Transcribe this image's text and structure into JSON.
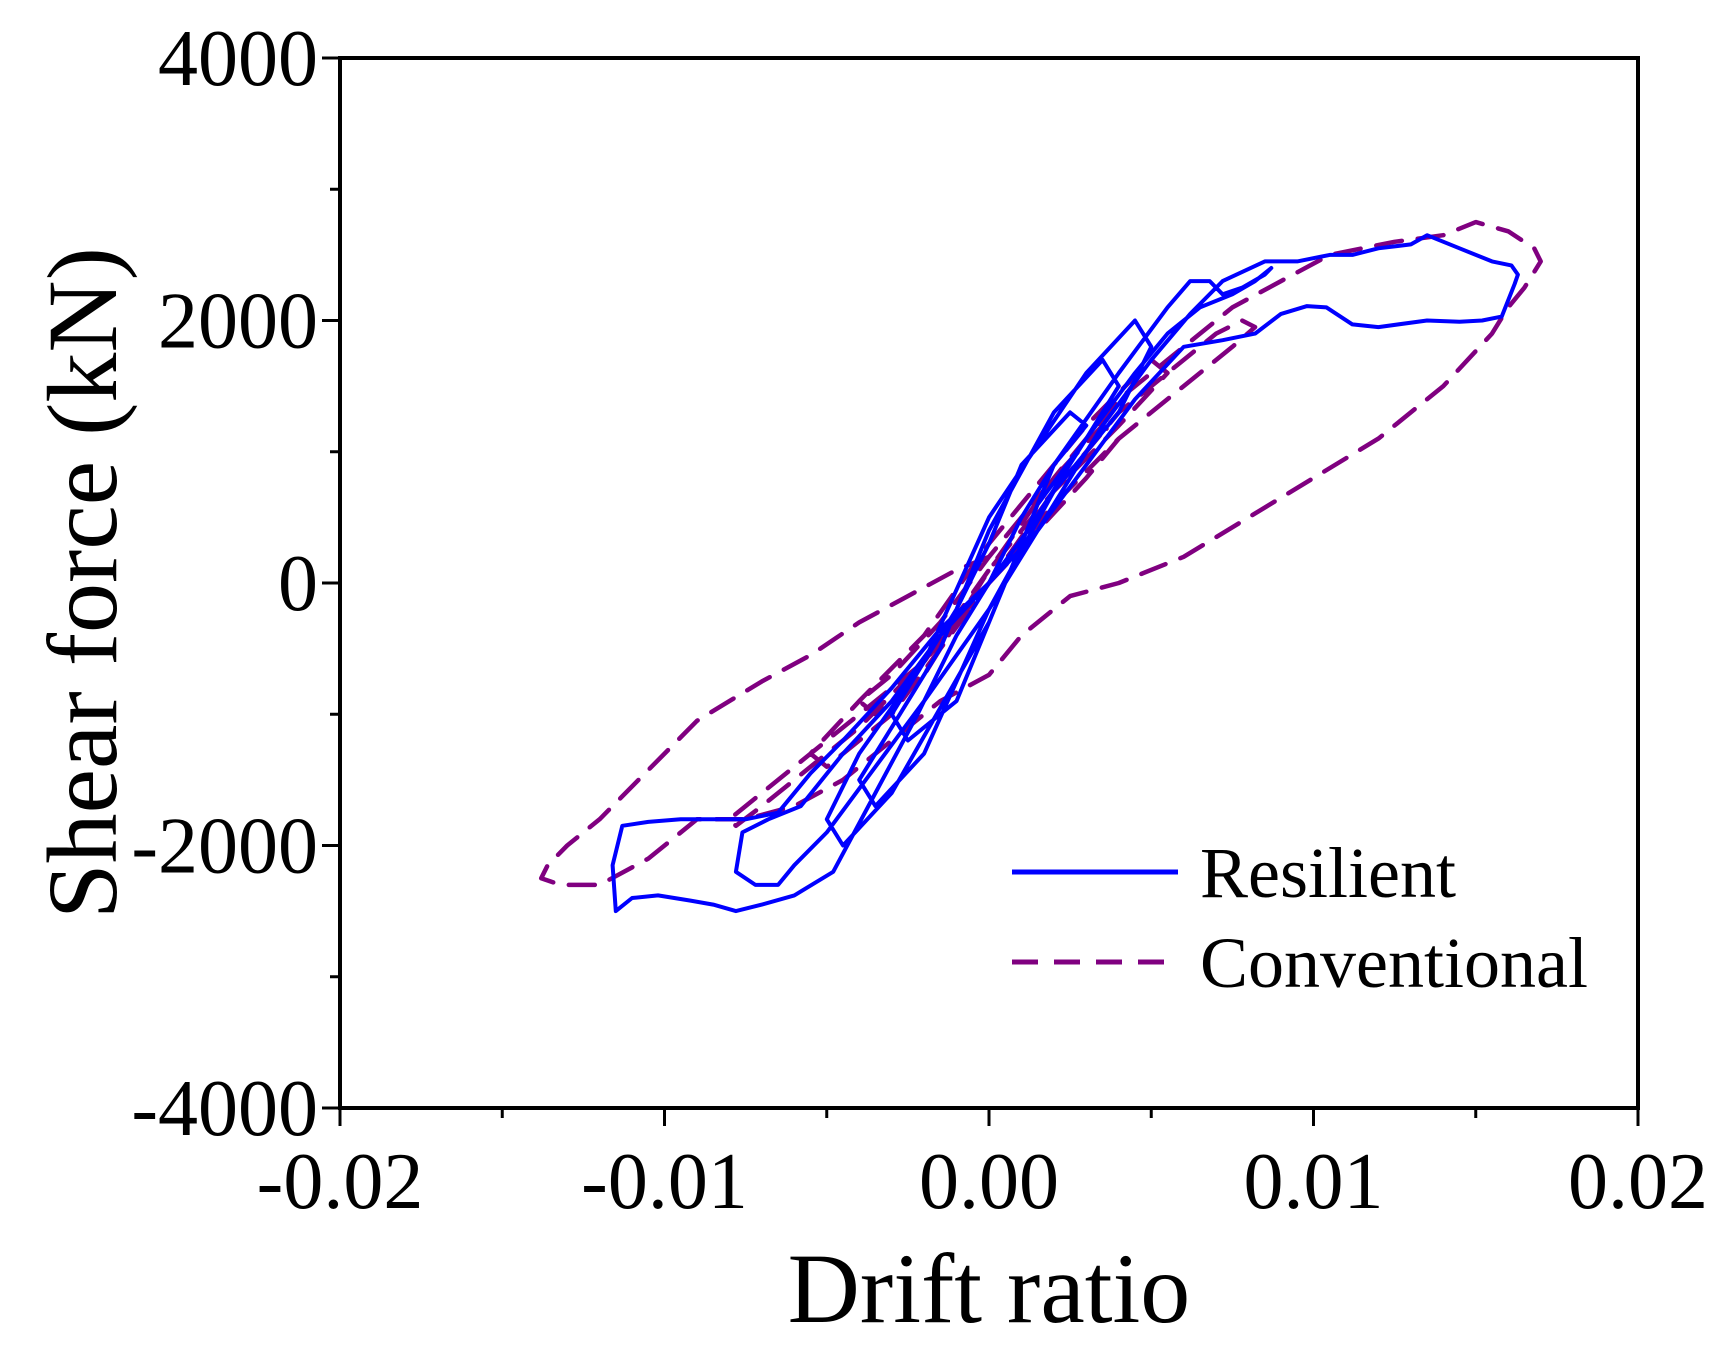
{
  "chart_data": {
    "type": "line",
    "title": "",
    "xlabel": "Drift ratio",
    "ylabel": "Shear force (kN)",
    "xlim": [
      -0.02,
      0.02
    ],
    "ylim": [
      -4000,
      4000
    ],
    "x_ticks": [
      -0.02,
      -0.01,
      0.0,
      0.01,
      0.02
    ],
    "x_tick_labels": [
      "-0.02",
      "-0.01",
      "0.00",
      "0.01",
      "0.02"
    ],
    "y_ticks": [
      -4000,
      -2000,
      0,
      2000,
      4000
    ],
    "y_tick_labels": [
      "-4000",
      "-2000",
      "0",
      "2000",
      "4000"
    ],
    "grid": false,
    "legend_position": "bottom-right",
    "series": [
      {
        "name": "Resilient",
        "color": "#0000ff",
        "style": "solid",
        "x": [
          0,
          0.001,
          0.002,
          0.003,
          0.0025,
          0.001,
          0,
          -0.001,
          -0.002,
          -0.003,
          -0.0025,
          -0.001,
          0,
          0.0015,
          0.003,
          0.004,
          0.0035,
          0.002,
          0,
          -0.0015,
          -0.003,
          -0.004,
          -0.0035,
          -0.002,
          0,
          0.002,
          0.004,
          0.005,
          0.0045,
          0.003,
          0,
          -0.002,
          -0.004,
          -0.005,
          -0.0045,
          -0.003,
          0,
          0.002,
          0.004,
          0.0055,
          0.0062,
          0.0068,
          0.0072,
          0.0078,
          0.0085,
          0.0087,
          0.0082,
          0.0075,
          0.0065,
          0.0055,
          0.0045,
          0.003,
          0.0012,
          0,
          -0.0015,
          -0.003,
          -0.0045,
          -0.0058,
          -0.0068,
          -0.0076,
          -0.0078,
          -0.0072,
          -0.0065,
          -0.006,
          -0.005,
          -0.0035,
          -0.002,
          0,
          0.002,
          0.0035,
          0.005,
          0.0062,
          0.0072,
          0.0085,
          0.0095,
          0.0105,
          0.0112,
          0.012,
          0.013,
          0.0135,
          0.0145,
          0.0155,
          0.0161,
          0.0163,
          0.0162,
          0.0158,
          0.0152,
          0.0145,
          0.0135,
          0.012,
          0.0112,
          0.0104,
          0.0098,
          0.009,
          0.0082,
          0.0072,
          0.006,
          0.0045,
          0.003,
          0.0015,
          0,
          -0.0015,
          -0.003,
          -0.0045,
          -0.0055,
          -0.0065,
          -0.0075,
          -0.0085,
          -0.0095,
          -0.0105,
          -0.0113,
          -0.0116,
          -0.0115,
          -0.011,
          -0.0102,
          -0.0092,
          -0.0085,
          -0.0078,
          -0.007,
          -0.006,
          -0.0048,
          -0.0035,
          -0.0022,
          -0.001,
          0
        ],
        "y": [
          0,
          500,
          900,
          1200,
          1300,
          900,
          300,
          -200,
          -600,
          -1000,
          -1200,
          -900,
          -300,
          600,
          1100,
          1500,
          1700,
          1300,
          400,
          -500,
          -1100,
          -1500,
          -1700,
          -1300,
          -200,
          700,
          1300,
          1800,
          2000,
          1600,
          500,
          -600,
          -1300,
          -1800,
          -2000,
          -1600,
          -300,
          900,
          1600,
          2100,
          2300,
          2300,
          2200,
          2250,
          2350,
          2400,
          2300,
          2200,
          2100,
          1900,
          1600,
          1100,
          400,
          0,
          -400,
          -900,
          -1300,
          -1700,
          -1800,
          -1900,
          -2200,
          -2300,
          -2300,
          -2150,
          -1900,
          -1400,
          -900,
          -200,
          600,
          1200,
          1700,
          2050,
          2300,
          2450,
          2450,
          2500,
          2500,
          2550,
          2580,
          2650,
          2550,
          2450,
          2420,
          2350,
          2280,
          2030,
          2000,
          1990,
          2000,
          1950,
          1970,
          2100,
          2110,
          2050,
          1900,
          1850,
          1800,
          1400,
          900,
          400,
          0,
          -350,
          -800,
          -1200,
          -1450,
          -1750,
          -1800,
          -1800,
          -1800,
          -1820,
          -1850,
          -2150,
          -2500,
          -2400,
          -2380,
          -2420,
          -2450,
          -2500,
          -2450,
          -2380,
          -2200,
          -1600,
          -1000,
          -400,
          0
        ]
      },
      {
        "name": "Conventional",
        "color": "#800080",
        "style": "dashed",
        "x": [
          0,
          0.0015,
          0.003,
          0.004,
          0.0035,
          0.002,
          0,
          -0.0015,
          -0.003,
          -0.004,
          -0.0035,
          -0.002,
          0,
          0.002,
          0.004,
          0.0055,
          0.005,
          0.003,
          0,
          -0.002,
          -0.004,
          -0.0055,
          -0.005,
          -0.003,
          0,
          0.002,
          0.004,
          0.006,
          0.0075,
          0.0082,
          0.0078,
          0.007,
          0.006,
          0.004,
          0.002,
          0,
          -0.002,
          -0.004,
          -0.006,
          -0.0075,
          -0.008,
          -0.0078,
          -0.007,
          -0.006,
          -0.004,
          -0.002,
          0,
          0.002,
          0.004,
          0.006,
          0.0075,
          0.009,
          0.0105,
          0.0125,
          0.014,
          0.015,
          0.016,
          0.0168,
          0.017,
          0.0165,
          0.016,
          0.0155,
          0.014,
          0.012,
          0.01,
          0.008,
          0.006,
          0.004,
          0.0025,
          0.001,
          0,
          -0.0015,
          -0.003,
          -0.0045,
          -0.006,
          -0.0075,
          -0.009,
          -0.0105,
          -0.012,
          -0.0132,
          -0.0138,
          -0.0136,
          -0.013,
          -0.012,
          -0.0108,
          -0.0098,
          -0.009,
          -0.008,
          -0.007,
          -0.0055,
          -0.004,
          -0.0025,
          -0.001,
          0
        ],
        "y": [
          0,
          400,
          800,
          1100,
          1200,
          800,
          200,
          -300,
          -700,
          -900,
          -1000,
          -700,
          100,
          700,
          1200,
          1600,
          1700,
          1200,
          300,
          -400,
          -900,
          -1300,
          -1400,
          -1000,
          0,
          600,
          1100,
          1500,
          1800,
          1950,
          2000,
          1900,
          1700,
          1300,
          700,
          0,
          -600,
          -1000,
          -1400,
          -1700,
          -1800,
          -1850,
          -1700,
          -1500,
          -1100,
          -600,
          100,
          800,
          1400,
          1800,
          2100,
          2300,
          2500,
          2600,
          2650,
          2750,
          2680,
          2550,
          2450,
          2250,
          2100,
          1900,
          1500,
          1100,
          800,
          500,
          200,
          0,
          -100,
          -400,
          -700,
          -900,
          -1200,
          -1500,
          -1700,
          -1800,
          -1800,
          -2100,
          -2300,
          -2300,
          -2250,
          -2150,
          -2000,
          -1800,
          -1500,
          -1250,
          -1050,
          -900,
          -750,
          -550,
          -300,
          -100,
          100,
          200
        ]
      }
    ]
  }
}
